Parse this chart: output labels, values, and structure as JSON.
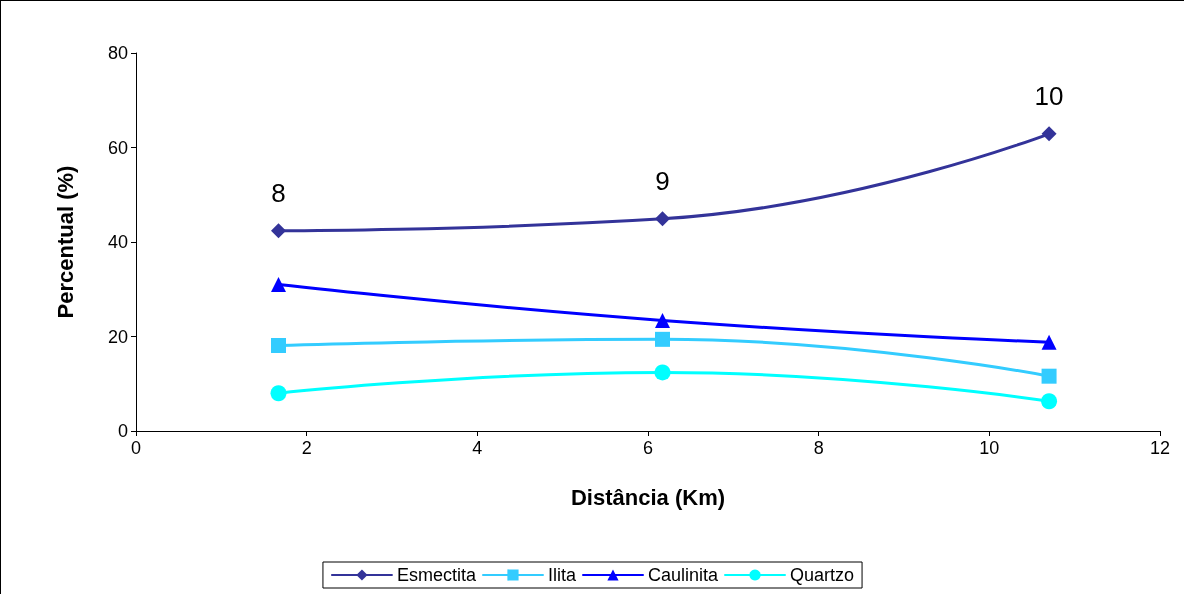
{
  "chart_data": {
    "type": "line",
    "xlabel": "Distância (Km)",
    "ylabel": "Percentual (%)",
    "xlim": [
      0,
      12
    ],
    "xticks": [
      0,
      2,
      4,
      6,
      8,
      10,
      12
    ],
    "ylim": [
      0,
      80
    ],
    "yticks": [
      0,
      20,
      40,
      60,
      80
    ],
    "grid": false,
    "legend": "bottom",
    "series": [
      {
        "name": "Esmectita",
        "color": "#333399",
        "marker": "diamond",
        "x": [
          1.67,
          6.17,
          10.7
        ],
        "values": [
          42.4,
          44.9,
          62.9
        ]
      },
      {
        "name": "Ilita",
        "color": "#33ccff",
        "marker": "square",
        "x": [
          1.67,
          6.17,
          10.7
        ],
        "values": [
          18.1,
          19.4,
          11.6
        ]
      },
      {
        "name": "Caulinita",
        "color": "#0000ff",
        "marker": "triangle",
        "x": [
          1.67,
          6.17,
          10.7
        ],
        "values": [
          31.0,
          23.4,
          18.8
        ]
      },
      {
        "name": "Quartzo",
        "color": "#00ffff",
        "marker": "circle",
        "x": [
          1.67,
          6.17,
          10.7
        ],
        "values": [
          8.0,
          12.4,
          6.3
        ]
      }
    ],
    "annotations": [
      {
        "text": "8",
        "x": 1.67,
        "y": 42.4
      },
      {
        "text": "9",
        "x": 6.17,
        "y": 44.9
      },
      {
        "text": "10",
        "x": 10.7,
        "y": 62.9
      }
    ]
  }
}
